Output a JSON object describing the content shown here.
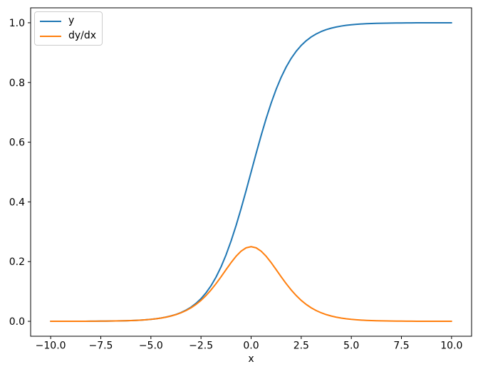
{
  "chart_data": {
    "type": "line",
    "title": "",
    "xlabel": "x",
    "ylabel": "",
    "grid": false,
    "background": "#ffffff",
    "axis_color": "#000000",
    "xlim": [
      -11,
      11
    ],
    "ylim": [
      -0.05,
      1.05
    ],
    "xticks": {
      "values": [
        -10,
        -7.5,
        -5,
        -2.5,
        0,
        2.5,
        5,
        7.5,
        10
      ],
      "labels": [
        "−10.0",
        "−7.5",
        "−5.0",
        "−2.5",
        "0.0",
        "2.5",
        "5.0",
        "7.5",
        "10.0"
      ]
    },
    "yticks": {
      "values": [
        0.0,
        0.2,
        0.4,
        0.6,
        0.8,
        1.0
      ],
      "labels": [
        "0.0",
        "0.2",
        "0.4",
        "0.6",
        "0.8",
        "1.0"
      ]
    },
    "legend": {
      "position": "upper left"
    },
    "x": [
      -10,
      -9.75,
      -9.5,
      -9.25,
      -9,
      -8.75,
      -8.5,
      -8.25,
      -8,
      -7.75,
      -7.5,
      -7.25,
      -7,
      -6.75,
      -6.5,
      -6.25,
      -6,
      -5.75,
      -5.5,
      -5.25,
      -5,
      -4.75,
      -4.5,
      -4.25,
      -4,
      -3.75,
      -3.5,
      -3.25,
      -3,
      -2.75,
      -2.5,
      -2.25,
      -2,
      -1.75,
      -1.5,
      -1.25,
      -1,
      -0.75,
      -0.5,
      -0.25,
      0,
      0.25,
      0.5,
      0.75,
      1,
      1.25,
      1.5,
      1.75,
      2,
      2.25,
      2.5,
      2.75,
      3,
      3.25,
      3.5,
      3.75,
      4,
      4.25,
      4.5,
      4.75,
      5,
      5.25,
      5.5,
      5.75,
      6,
      6.25,
      6.5,
      6.75,
      7,
      7.25,
      7.5,
      7.75,
      8,
      8.25,
      8.5,
      8.75,
      9,
      9.25,
      9.5,
      9.75,
      10
    ],
    "series": [
      {
        "name": "y",
        "color": "#1f77b4",
        "values": [
          5e-05,
          6e-05,
          7e-05,
          0.0001,
          0.00012,
          0.00016,
          0.0002,
          0.00026,
          0.00034,
          0.00043,
          0.00055,
          0.00071,
          0.00091,
          0.00117,
          0.0015,
          0.00193,
          0.00247,
          0.00317,
          0.00407,
          0.00522,
          0.00669,
          0.00858,
          0.01099,
          0.01406,
          0.01799,
          0.02298,
          0.02931,
          0.03733,
          0.04743,
          0.06009,
          0.07586,
          0.09535,
          0.1192,
          0.14805,
          0.18243,
          0.2227,
          0.26894,
          0.32082,
          0.37754,
          0.43782,
          0.5,
          0.56218,
          0.62246,
          0.67918,
          0.73106,
          0.7773,
          0.81757,
          0.85195,
          0.8808,
          0.90465,
          0.92414,
          0.93991,
          0.95257,
          0.96267,
          0.97069,
          0.97702,
          0.98201,
          0.98594,
          0.98901,
          0.99142,
          0.99331,
          0.99478,
          0.99593,
          0.99683,
          0.99753,
          0.99807,
          0.9985,
          0.99883,
          0.99909,
          0.99929,
          0.99945,
          0.99957,
          0.99966,
          0.99974,
          0.9998,
          0.99984,
          0.99988,
          0.9999,
          0.99993,
          0.99994,
          0.99995
        ]
      },
      {
        "name": "dy/dx",
        "color": "#ff7f0e",
        "values": [
          5e-05,
          6e-05,
          7e-05,
          0.0001,
          0.00012,
          0.00016,
          0.0002,
          0.00026,
          0.00034,
          0.00043,
          0.00055,
          0.00071,
          0.00091,
          0.00117,
          0.0015,
          0.00192,
          0.00247,
          0.00316,
          0.00405,
          0.00519,
          0.00665,
          0.0085,
          0.01087,
          0.01387,
          0.01766,
          0.02245,
          0.02845,
          0.03593,
          0.04518,
          0.05648,
          0.0701,
          0.08626,
          0.10499,
          0.12613,
          0.14915,
          0.17311,
          0.19661,
          0.2179,
          0.235,
          0.24613,
          0.25,
          0.24613,
          0.235,
          0.2179,
          0.19661,
          0.17311,
          0.14915,
          0.12613,
          0.10499,
          0.08626,
          0.0701,
          0.05648,
          0.04518,
          0.03593,
          0.02845,
          0.02245,
          0.01766,
          0.01387,
          0.01087,
          0.0085,
          0.00665,
          0.00519,
          0.00405,
          0.00316,
          0.00247,
          0.00192,
          0.0015,
          0.00117,
          0.00091,
          0.00071,
          0.00055,
          0.00043,
          0.00034,
          0.00026,
          0.0002,
          0.00016,
          0.00012,
          0.0001,
          7e-05,
          6e-05,
          5e-05
        ]
      }
    ]
  }
}
